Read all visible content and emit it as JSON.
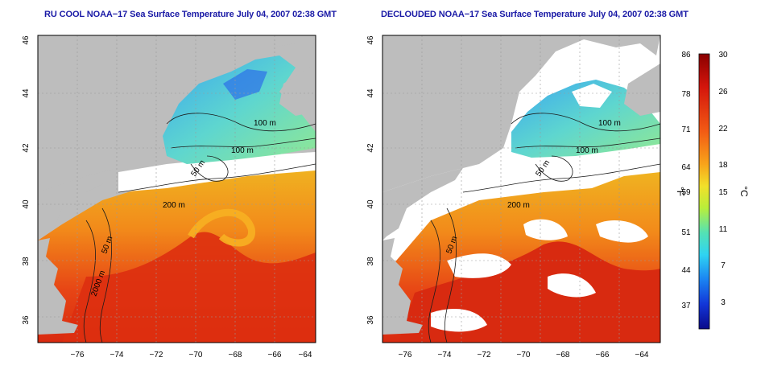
{
  "left_panel": {
    "title": "RU COOL NOAA−17 Sea Surface Temperature July 04, 2007 02:38 GMT"
  },
  "right_panel": {
    "title": "DECLOUDED NOAA−17 Sea Surface Temperature July 04, 2007 02:38 GMT"
  },
  "axes": {
    "x_ticks": [
      "−76",
      "−74",
      "−72",
      "−70",
      "−68",
      "−66",
      "−64"
    ],
    "y_ticks": [
      "36",
      "38",
      "40",
      "42",
      "44",
      "46"
    ]
  },
  "contours": {
    "left": [
      "100 m",
      "100 m",
      "50 m",
      "200 m",
      "50 m",
      "2000 m"
    ],
    "right": [
      "100 m",
      "100 m",
      "50 m",
      "200 m",
      "50 m"
    ]
  },
  "colorbar": {
    "f_label": "°F",
    "c_label": "°C",
    "f_ticks": [
      "86",
      "78",
      "71",
      "64",
      "59",
      "51",
      "44",
      "37"
    ],
    "c_ticks": [
      "30",
      "26",
      "22",
      "18",
      "15",
      "11",
      "7",
      "3"
    ]
  },
  "colors": {
    "land": "#bdbdbd",
    "clouds": "#ffffff",
    "title": "#1a1aa6",
    "warm": "#e22810",
    "cool": "#6fd6c8"
  }
}
